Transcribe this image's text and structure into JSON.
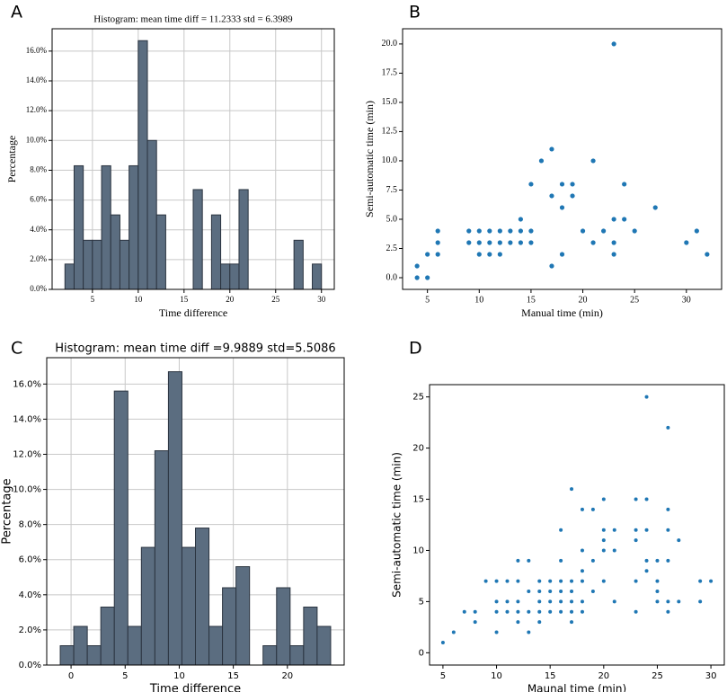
{
  "chart_data": [
    {
      "type": "histogram",
      "label": "A",
      "title": "Histogram: mean time diff = 11.2333 std = 6.3989",
      "xlabel": "Time difference",
      "ylabel": "Percentage",
      "color": "#5b6d80",
      "edgecolor": "#2b3440",
      "grid": true,
      "bins": [
        2,
        3,
        4,
        5,
        6,
        7,
        8,
        9,
        10,
        11,
        12,
        13,
        14,
        15,
        16,
        17,
        18,
        19,
        20,
        21,
        22,
        23,
        24,
        25,
        26,
        27,
        28,
        29,
        30
      ],
      "values": [
        1.7,
        8.3,
        3.3,
        3.3,
        8.3,
        5,
        3.3,
        8.3,
        16.7,
        10,
        5,
        0,
        0,
        0,
        6.7,
        0,
        5,
        1.7,
        1.7,
        6.7,
        0,
        0,
        0,
        0,
        0,
        3.3,
        0,
        1.7
      ],
      "xlim": [
        0.6,
        31.4
      ],
      "xticks": [
        5,
        10,
        15,
        20,
        25,
        30
      ],
      "ylim": [
        0,
        17.5
      ],
      "yticks": [
        {
          "value": 0,
          "label": "0.0%"
        },
        {
          "value": 2,
          "label": "2.0%"
        },
        {
          "value": 4,
          "label": "4.0%"
        },
        {
          "value": 6,
          "label": "6.0%"
        },
        {
          "value": 8,
          "label": "8.0%"
        },
        {
          "value": 10,
          "label": "10.0%"
        },
        {
          "value": 12,
          "label": "12.0%"
        },
        {
          "value": 14,
          "label": "14.0%"
        },
        {
          "value": 16,
          "label": "16.0%"
        }
      ]
    },
    {
      "type": "scatter",
      "label": "B",
      "xlabel": "Manual time (min)",
      "ylabel": "Semi-automatic time (min)",
      "color": "#1f77b4",
      "grid": false,
      "x": [
        4,
        4,
        5,
        5,
        6,
        6,
        6,
        9,
        9,
        10,
        10,
        10,
        11,
        11,
        11,
        12,
        12,
        12,
        13,
        13,
        14,
        14,
        14,
        15,
        15,
        15,
        16,
        17,
        17,
        17,
        18,
        18,
        18,
        19,
        19,
        20,
        21,
        21,
        22,
        23,
        23,
        23,
        23,
        24,
        24,
        25,
        27,
        30,
        31,
        32
      ],
      "values": [
        0,
        1,
        0,
        2,
        2,
        3,
        4,
        3,
        4,
        2,
        3,
        4,
        2,
        3,
        4,
        2,
        3,
        4,
        3,
        4,
        3,
        4,
        5,
        3,
        4,
        8,
        10,
        11,
        7,
        1,
        8,
        6,
        2,
        8,
        7,
        4,
        10,
        3,
        4,
        20,
        5,
        3,
        2,
        8,
        5,
        4,
        6,
        3,
        4,
        2
      ],
      "xlim": [
        2.6,
        33.4
      ],
      "xticks": [
        5,
        10,
        15,
        20,
        25,
        30
      ],
      "ylim": [
        -1,
        21.3
      ],
      "yticks": [
        {
          "value": 0,
          "label": "0.0"
        },
        2.5,
        {
          "value": 5,
          "label": "5.0"
        },
        7.5,
        {
          "value": 10,
          "label": "10.0"
        },
        12.5,
        {
          "value": 15,
          "label": "15.0"
        },
        17.5,
        {
          "value": 20,
          "label": "20.0"
        }
      ]
    },
    {
      "type": "histogram",
      "label": "C",
      "title": "Histogram: mean time diff =9.9889 std=5.5086",
      "xlabel": "Time difference",
      "ylabel": "Percentage",
      "color": "#5b6d80",
      "edgecolor": "#2b3440",
      "grid": true,
      "bins": [
        -1,
        0.25,
        1.5,
        2.75,
        4,
        5.25,
        6.5,
        7.75,
        9,
        10.25,
        11.5,
        12.75,
        14,
        15.25,
        16.5,
        17.75,
        19,
        20.25,
        21.5,
        22.75,
        24
      ],
      "values": [
        1.1,
        2.2,
        1.1,
        3.3,
        15.6,
        2.2,
        6.7,
        12.2,
        16.7,
        6.7,
        7.8,
        2.2,
        4.4,
        5.6,
        0,
        1.1,
        4.4,
        1.1,
        3.3,
        2.2
      ],
      "xlim": [
        -2.25,
        25.25
      ],
      "xticks": [
        0,
        5,
        10,
        15,
        20
      ],
      "ylim": [
        0,
        17.5
      ],
      "yticks": [
        {
          "value": 0,
          "label": "0.0%"
        },
        {
          "value": 2,
          "label": "2.0%"
        },
        {
          "value": 4,
          "label": "4.0%"
        },
        {
          "value": 6,
          "label": "6.0%"
        },
        {
          "value": 8,
          "label": "8.0%"
        },
        {
          "value": 10,
          "label": "10.0%"
        },
        {
          "value": 12,
          "label": "12.0%"
        },
        {
          "value": 14,
          "label": "14.0%"
        },
        {
          "value": 16,
          "label": "16.0%"
        }
      ]
    },
    {
      "type": "scatter",
      "label": "D",
      "xlabel": "Maunal time (min)",
      "ylabel": "Semi-automatic time (min)",
      "color": "#1f77b4",
      "grid": false,
      "x": [
        5,
        6,
        7,
        8,
        8,
        9,
        10,
        10,
        10,
        10,
        11,
        11,
        11,
        12,
        12,
        12,
        12,
        12,
        13,
        13,
        13,
        13,
        14,
        14,
        14,
        14,
        14,
        15,
        15,
        15,
        15,
        16,
        16,
        16,
        16,
        16,
        16,
        17,
        17,
        17,
        17,
        17,
        17,
        18,
        18,
        18,
        18,
        18,
        18,
        19,
        19,
        19,
        20,
        20,
        20,
        20,
        20,
        21,
        21,
        21,
        23,
        23,
        23,
        23,
        23,
        24,
        24,
        24,
        24,
        24,
        25,
        25,
        25,
        25,
        26,
        26,
        26,
        26,
        26,
        26,
        27,
        27,
        29,
        29,
        30
      ],
      "values": [
        1,
        2,
        4,
        4,
        3,
        7,
        7,
        5,
        4,
        2,
        7,
        4,
        5,
        9,
        7,
        5,
        4,
        3,
        9,
        6,
        4,
        2,
        7,
        6,
        5,
        4,
        3,
        7,
        6,
        5,
        4,
        12,
        9,
        7,
        6,
        5,
        4,
        16,
        7,
        6,
        5,
        4,
        3,
        14,
        10,
        8,
        7,
        5,
        4,
        14,
        9,
        6,
        15,
        12,
        11,
        10,
        7,
        12,
        10,
        5,
        15,
        12,
        11,
        7,
        4,
        25,
        15,
        12,
        8,
        9,
        9,
        7,
        6,
        5,
        22,
        14,
        12,
        9,
        5,
        4,
        11,
        5,
        7,
        5,
        7
      ],
      "xlim": [
        3.75,
        31.25
      ],
      "xticks": [
        5,
        10,
        15,
        20,
        25,
        30
      ],
      "ylim": [
        -1.2,
        26.2
      ],
      "yticks": [
        0,
        5,
        10,
        15,
        20,
        25
      ]
    }
  ]
}
